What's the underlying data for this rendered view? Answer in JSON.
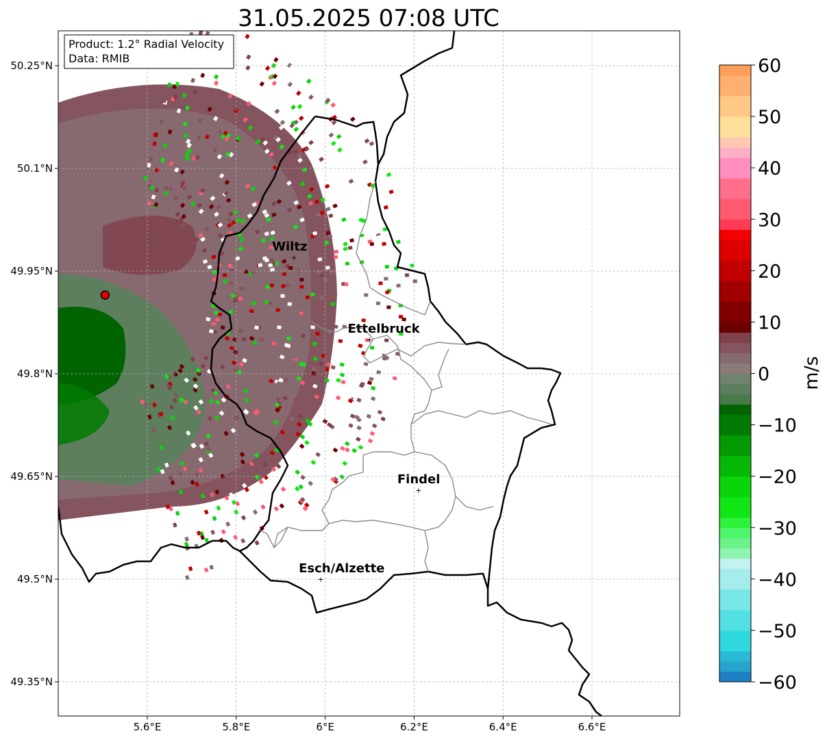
{
  "title": "31.05.2025 07:08 UTC",
  "info_box": {
    "product": "Product: 1.2° Radial Velocity",
    "data_source": "Data: RMIB"
  },
  "map": {
    "lon_ticks": [
      {
        "value": 5.6,
        "label": "5.6°E"
      },
      {
        "value": 5.8,
        "label": "5.8°E"
      },
      {
        "value": 6.0,
        "label": "6°E"
      },
      {
        "value": 6.2,
        "label": "6.2°E"
      },
      {
        "value": 6.4,
        "label": "6.4°E"
      },
      {
        "value": 6.6,
        "label": "6.6°E"
      }
    ],
    "lat_ticks": [
      {
        "value": 50.25,
        "label": "50.25°N"
      },
      {
        "value": 50.1,
        "label": "50.1°N"
      },
      {
        "value": 49.95,
        "label": "49.95°N"
      },
      {
        "value": 49.8,
        "label": "49.8°N"
      },
      {
        "value": 49.65,
        "label": "49.65°N"
      },
      {
        "value": 49.5,
        "label": "49.5°N"
      },
      {
        "value": 49.35,
        "label": "49.35°N"
      }
    ],
    "grid": true,
    "cities": [
      {
        "name": "Wiltz",
        "lon": 5.93,
        "lat": 49.97
      },
      {
        "name": "Ettelbruck",
        "lon": 6.1,
        "lat": 49.85
      },
      {
        "name": "Findel",
        "lon": 6.21,
        "lat": 49.63
      },
      {
        "name": "Esch/Alzette",
        "lon": 5.99,
        "lat": 49.5
      }
    ],
    "radar_site": {
      "lon": 5.505,
      "lat": 49.915
    }
  },
  "colorbar": {
    "unit": "m/s",
    "min": -60,
    "max": 60,
    "ticks": [
      {
        "value": 60,
        "label": "60"
      },
      {
        "value": 50,
        "label": "50"
      },
      {
        "value": 40,
        "label": "40"
      },
      {
        "value": 30,
        "label": "30"
      },
      {
        "value": 20,
        "label": "20"
      },
      {
        "value": 10,
        "label": "10"
      },
      {
        "value": 0,
        "label": "0"
      },
      {
        "value": -10,
        "label": "−10"
      },
      {
        "value": -20,
        "label": "−20"
      },
      {
        "value": -30,
        "label": "−30"
      },
      {
        "value": -40,
        "label": "−40"
      },
      {
        "value": -50,
        "label": "−50"
      },
      {
        "value": -60,
        "label": "−60"
      }
    ],
    "color_stops": [
      {
        "from": -60,
        "to": -58,
        "color": "#1f7fc4"
      },
      {
        "from": -58,
        "to": -56,
        "color": "#25a3cc"
      },
      {
        "from": -56,
        "to": -54,
        "color": "#29b9d6"
      },
      {
        "from": -54,
        "to": -50,
        "color": "#2fd8df"
      },
      {
        "from": -50,
        "to": -46,
        "color": "#52e0e2"
      },
      {
        "from": -46,
        "to": -42,
        "color": "#78e6e6"
      },
      {
        "from": -42,
        "to": -38,
        "color": "#a6ecec"
      },
      {
        "from": -38,
        "to": -36,
        "color": "#c4f2f0"
      },
      {
        "from": -36,
        "to": -34,
        "color": "#8ff4b0"
      },
      {
        "from": -34,
        "to": -32,
        "color": "#6df28a"
      },
      {
        "from": -32,
        "to": -30,
        "color": "#4ef46a"
      },
      {
        "from": -30,
        "to": -28,
        "color": "#2cf23a"
      },
      {
        "from": -28,
        "to": -24,
        "color": "#10e614"
      },
      {
        "from": -24,
        "to": -20,
        "color": "#0ad40a"
      },
      {
        "from": -20,
        "to": -16,
        "color": "#06b806"
      },
      {
        "from": -16,
        "to": -12,
        "color": "#049a04"
      },
      {
        "from": -12,
        "to": -8,
        "color": "#007a00"
      },
      {
        "from": -8,
        "to": -6,
        "color": "#006400"
      },
      {
        "from": -6,
        "to": -4,
        "color": "#4a7a4a"
      },
      {
        "from": -4,
        "to": -2,
        "color": "#5e7f5e"
      },
      {
        "from": -2,
        "to": 0,
        "color": "#6f836f"
      },
      {
        "from": 0,
        "to": 2,
        "color": "#8a7a7a"
      },
      {
        "from": 2,
        "to": 4,
        "color": "#876a70"
      },
      {
        "from": 4,
        "to": 6,
        "color": "#84555e"
      },
      {
        "from": 6,
        "to": 8,
        "color": "#80404c"
      },
      {
        "from": 8,
        "to": 10,
        "color": "#6b0000"
      },
      {
        "from": 10,
        "to": 14,
        "color": "#800000"
      },
      {
        "from": 14,
        "to": 18,
        "color": "#a00000"
      },
      {
        "from": 18,
        "to": 22,
        "color": "#c00000"
      },
      {
        "from": 22,
        "to": 26,
        "color": "#dd0000"
      },
      {
        "from": 26,
        "to": 28,
        "color": "#f50000"
      },
      {
        "from": 28,
        "to": 30,
        "color": "#ff3a55"
      },
      {
        "from": 30,
        "to": 34,
        "color": "#ff5a70"
      },
      {
        "from": 34,
        "to": 38,
        "color": "#ff6e8a"
      },
      {
        "from": 38,
        "to": 42,
        "color": "#ff8fbf"
      },
      {
        "from": 42,
        "to": 44,
        "color": "#ffb0c8"
      },
      {
        "from": 44,
        "to": 46,
        "color": "#ffc8b0"
      },
      {
        "from": 46,
        "to": 50,
        "color": "#ffe09a"
      },
      {
        "from": 50,
        "to": 54,
        "color": "#ffc884"
      },
      {
        "from": 54,
        "to": 58,
        "color": "#ffb070"
      },
      {
        "from": 58,
        "to": 60,
        "color": "#ff9e5a"
      }
    ]
  }
}
